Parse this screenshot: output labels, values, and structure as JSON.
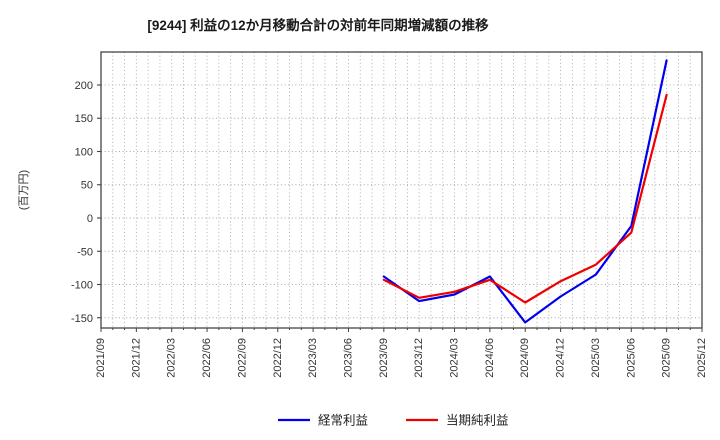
{
  "title": "[9244]  利益の12か月移動合計の対前年同期増減額の推移",
  "ylabel": "(百万円)",
  "colors": {
    "keijou_rieki": "#0000ee",
    "touki_junrieki": "#ee0000",
    "grid": "#a6a6a6",
    "spine": "#444444",
    "text": "#333333"
  },
  "legend": {
    "items": [
      {
        "label": "経常利益",
        "color": "#0000ee"
      },
      {
        "label": "当期純利益",
        "color": "#ee0000"
      }
    ]
  },
  "chart_data": {
    "type": "line",
    "title": "[9244]  利益の12か月移動合計の対前年同期増減額の推移",
    "xlabel": "",
    "ylabel": "(百万円)",
    "unit": "百万円",
    "x_ticks": [
      "2021/09",
      "2021/12",
      "2022/03",
      "2022/06",
      "2022/09",
      "2022/12",
      "2023/03",
      "2023/06",
      "2023/09",
      "2023/12",
      "2024/03",
      "2024/06",
      "2024/09",
      "2024/12",
      "2025/03",
      "2025/06",
      "2025/09",
      "2025/12"
    ],
    "y_ticks": [
      200,
      150,
      100,
      50,
      0,
      -50,
      -100,
      -150
    ],
    "ylim": [
      -165.4,
      249.6
    ],
    "grid": "dotted gray; vertical lines monthly, horizontal every 50",
    "legend_position": "bottom-center",
    "series": [
      {
        "name": "経常利益",
        "color": "#0000ee",
        "x": [
          "2023/09",
          "2023/12",
          "2024/03",
          "2024/06",
          "2024/09",
          "2024/12",
          "2025/03",
          "2025/06",
          "2025/09"
        ],
        "values": [
          -88,
          -125,
          -115,
          -88,
          -157,
          -118,
          -85,
          -12,
          237
        ]
      },
      {
        "name": "当期純利益",
        "color": "#ee0000",
        "x": [
          "2023/09",
          "2023/12",
          "2024/03",
          "2024/06",
          "2024/09",
          "2024/12",
          "2025/03",
          "2025/06",
          "2025/09"
        ],
        "values": [
          -93,
          -120,
          -111,
          -93,
          -127,
          -95,
          -70,
          -22,
          185
        ]
      }
    ]
  }
}
